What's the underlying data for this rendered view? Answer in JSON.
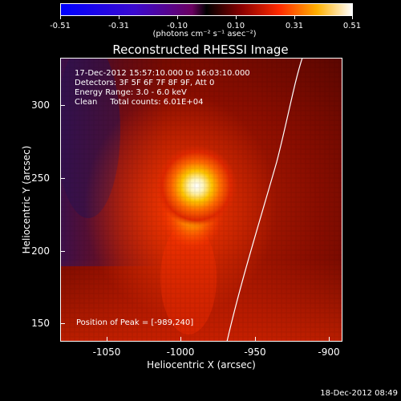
{
  "colorbar": {
    "tick_labels": [
      "-0.51",
      "-0.31",
      "-0.10",
      "0.10",
      "0.31",
      "0.51"
    ],
    "units": "(photons cm⁻² s⁻¹ asec⁻²)"
  },
  "title": "Reconstructed RHESSI Image",
  "info": {
    "time_range": "17-Dec-2012 15:57:10.000 to 16:03:10.000",
    "detectors": "Detectors: 3F 5F 6F 7F 8F 9F, Att 0",
    "energy": "Energy Range: 3.0 - 6.0 keV",
    "clean": "Clean     Total counts: 6.01E+04"
  },
  "peak": "Position of Peak = [-989,240]",
  "axes": {
    "xlabel": "Heliocentric X (arcsec)",
    "ylabel": "Heliocentric Y (arcsec)",
    "x_ticks": [
      "-1050",
      "-1000",
      "-950",
      "-900"
    ],
    "y_ticks": [
      "300",
      "250",
      "200",
      "150"
    ]
  },
  "timestamp": "18-Dec-2012 08:49"
}
